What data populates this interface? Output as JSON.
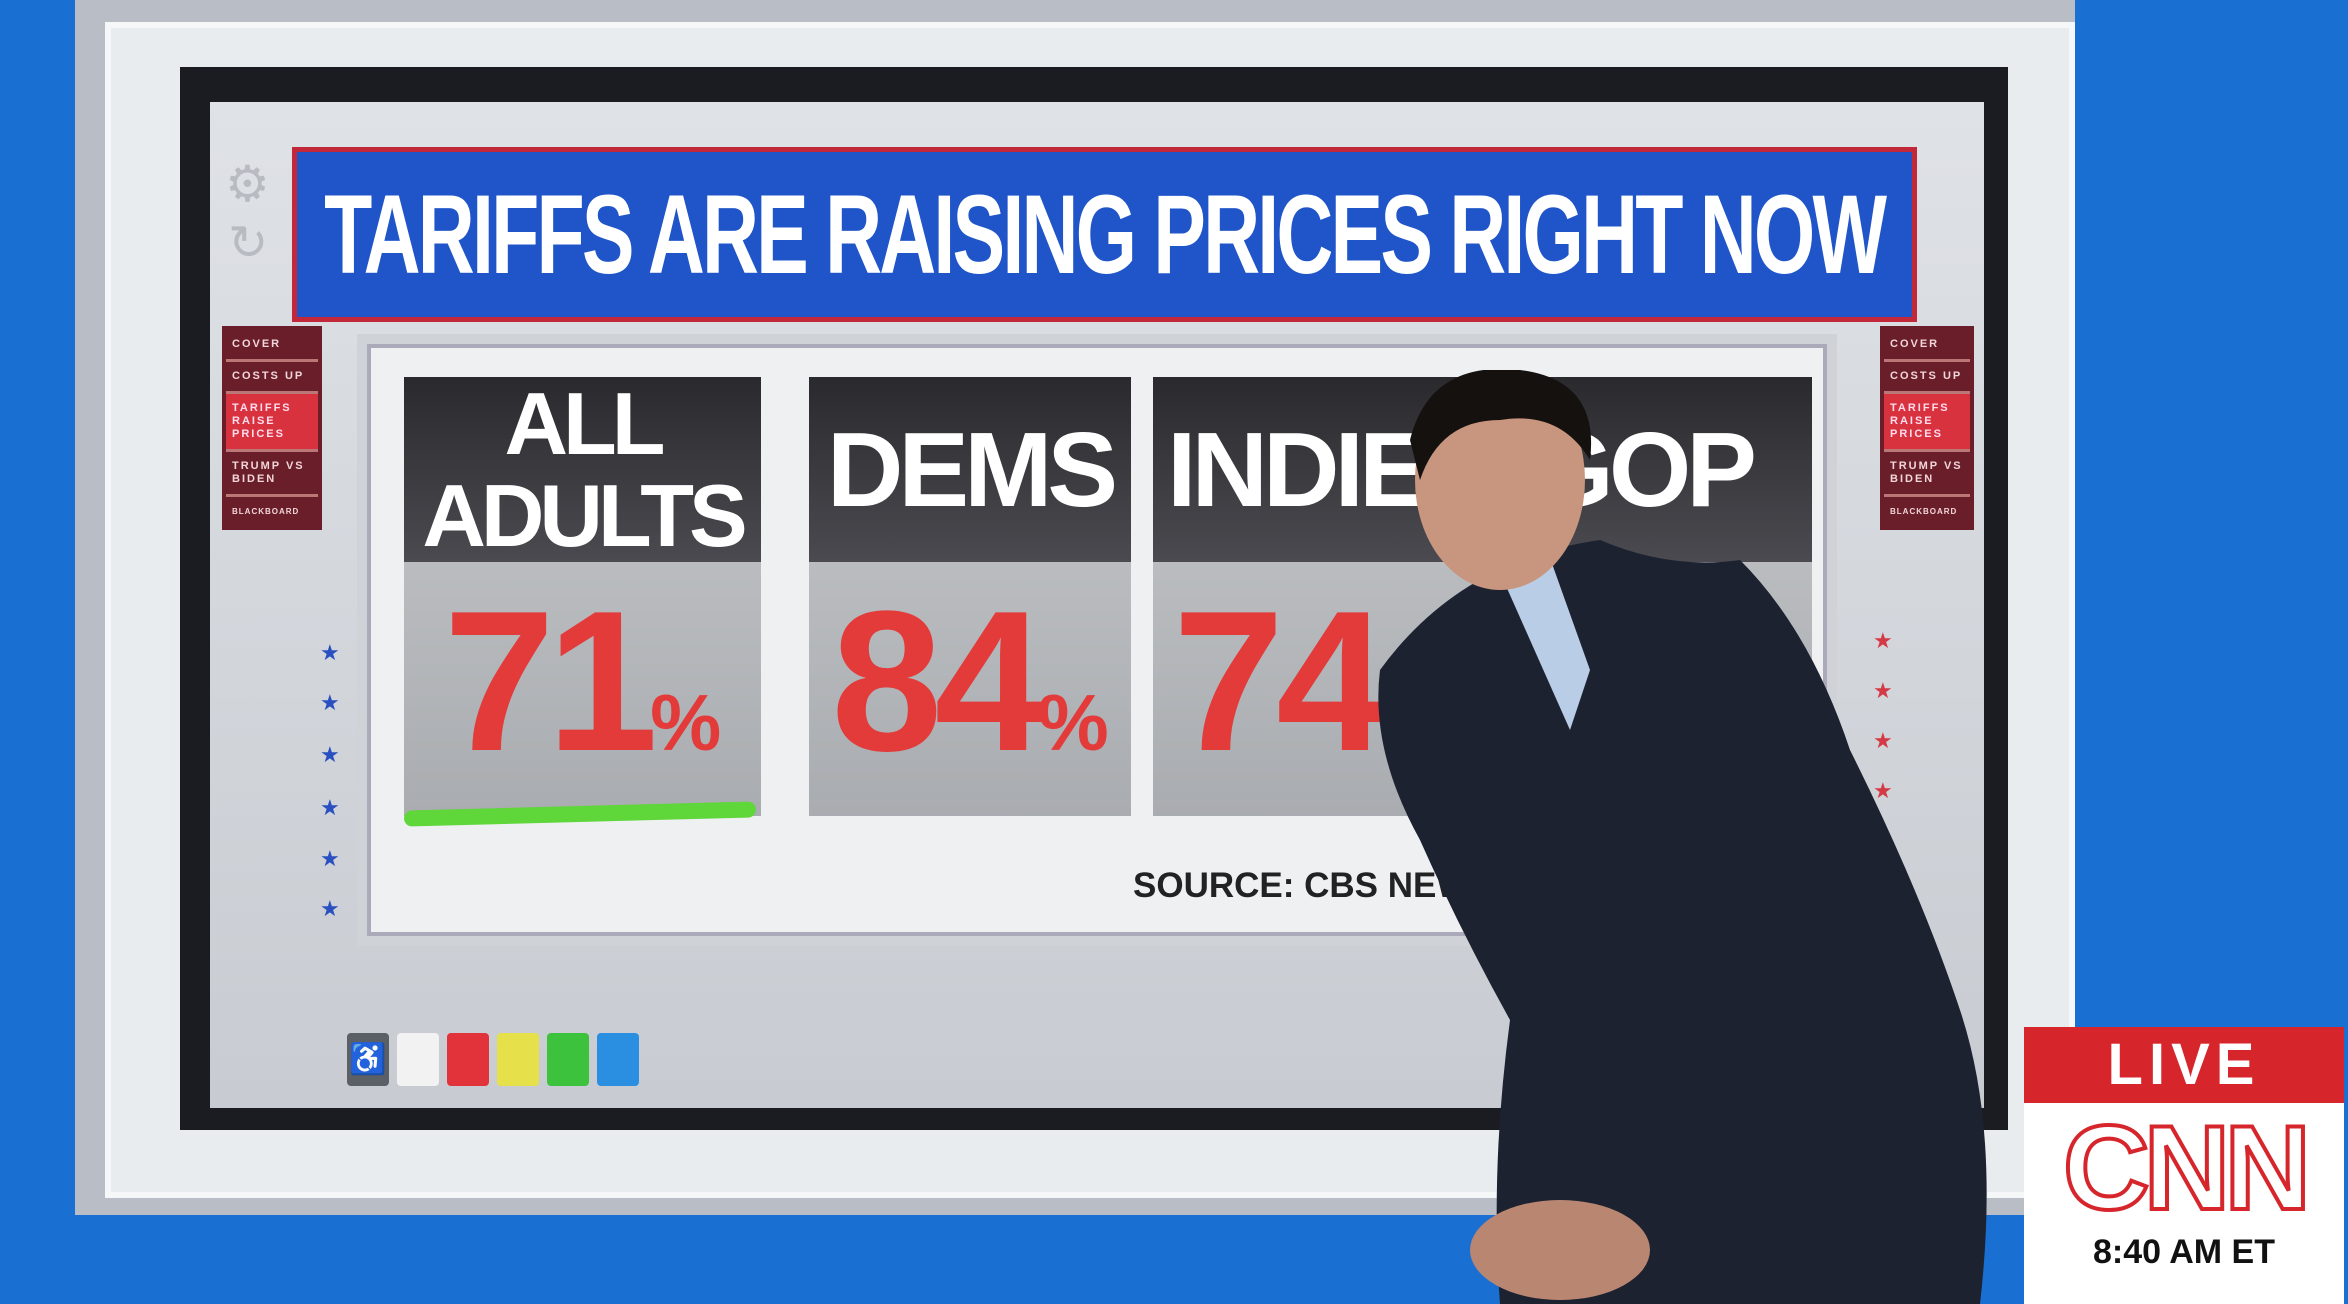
{
  "banner": {
    "title": "TARIFFS ARE RAISING PRICES RIGHT NOW"
  },
  "menu": {
    "items": [
      {
        "label": "COVER"
      },
      {
        "label": "COSTS UP"
      },
      {
        "label": "TARIFFS RAISE PRICES",
        "active": true
      },
      {
        "label": "TRUMP VS BIDEN"
      },
      {
        "label": "BLACKBOARD"
      }
    ]
  },
  "cards": [
    {
      "label": "ALL ADULTS",
      "value": "71",
      "unit": "%",
      "highlighted": true
    },
    {
      "label": "DEMS",
      "value": "84",
      "unit": "%"
    },
    {
      "label": "INDIE",
      "value": "74",
      "unit": ""
    },
    {
      "label": "GOP",
      "value": "",
      "unit": ""
    }
  ],
  "source": "SOURCE: CBS NEWS",
  "swatches": [
    "#5b5f66",
    "#f2f2f2",
    "#e2333b",
    "#e6e04a",
    "#3cc23c",
    "#2a8fe0"
  ],
  "colors": {
    "accent_red": "#e33a3a",
    "banner_blue": "#1f55c9",
    "highlight_green": "#5fd63a",
    "cnn_red": "#d6262b"
  },
  "bug": {
    "live": "LIVE",
    "network": "CNN",
    "time": "8:40 AM ET"
  }
}
